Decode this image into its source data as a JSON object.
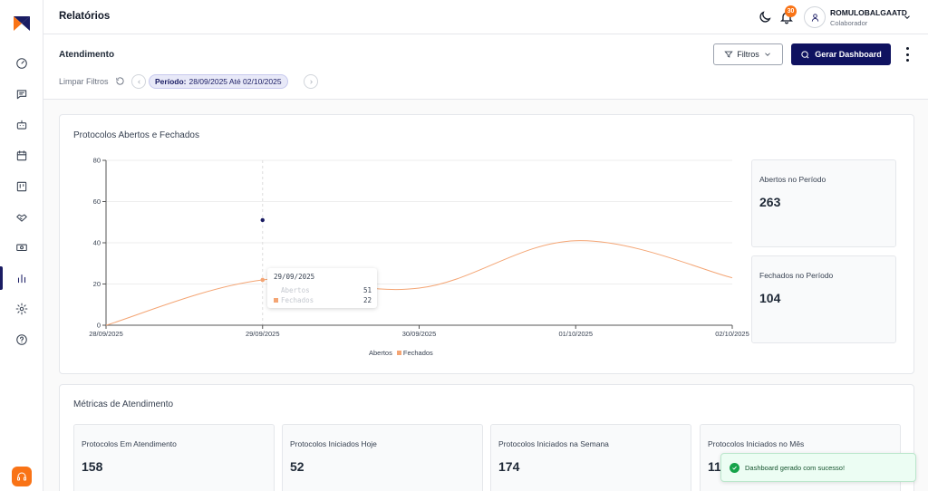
{
  "header": {
    "title": "Relatórios",
    "notifications_count": "30",
    "user_name": "ROMULOBALGAATD",
    "user_role": "Colaborador"
  },
  "page": {
    "section_title": "Atendimento",
    "filters_label": "Filtros",
    "generate_label": "Gerar Dashboard",
    "clear_filters_label": "Limpar Filtros",
    "period_prefix": "Período:",
    "period_value": "28/09/2025 Até 02/10/2025"
  },
  "chart_card": {
    "title": "Protocolos Abertos e Fechados",
    "stats": [
      {
        "label": "Abertos no Período",
        "value": "263"
      },
      {
        "label": "Fechados no Período",
        "value": "104"
      }
    ],
    "tooltip": {
      "date": "29/09/2025",
      "rows": [
        {
          "label": "Abertos",
          "value": "51"
        },
        {
          "label": "Fechados",
          "value": "22"
        }
      ]
    },
    "legend": [
      "Abertos",
      "Fechados"
    ]
  },
  "chart_data": {
    "type": "line",
    "categories": [
      "28/09/2025",
      "29/09/2025",
      "30/09/2025",
      "01/10/2025",
      "02/10/2025"
    ],
    "series": [
      {
        "name": "Abertos",
        "values": [
          null,
          51,
          null,
          null,
          null
        ]
      },
      {
        "name": "Fechados",
        "values": [
          0,
          22,
          18,
          41,
          23
        ]
      }
    ],
    "ylim": [
      0,
      80
    ],
    "yticks": [
      0,
      20,
      40,
      60,
      80
    ],
    "grid": true,
    "legend_position": "bottom",
    "colors": {
      "Abertos": "#1a1c63",
      "Fechados": "#f4a574"
    }
  },
  "metrics_card": {
    "title": "Métricas de Atendimento",
    "items": [
      {
        "label": "Protocolos Em Atendimento",
        "value": "158"
      },
      {
        "label": "Protocolos Iniciados Hoje",
        "value": "52"
      },
      {
        "label": "Protocolos Iniciados na Semana",
        "value": "174"
      },
      {
        "label": "Protocolos Iniciados no Mês",
        "value": "119"
      }
    ]
  },
  "toast": {
    "message": "Dashboard gerado com sucesso!"
  },
  "icons": {
    "sidebar": [
      "gauge-icon",
      "chat-icon",
      "bot-icon",
      "calendar-icon",
      "kanban-icon",
      "handshake-icon",
      "money-icon",
      "chart-bar-icon",
      "gear-icon",
      "help-icon"
    ]
  },
  "colors": {
    "primary": "#0f1260",
    "accent": "#f97316",
    "line": "#f4a574"
  }
}
